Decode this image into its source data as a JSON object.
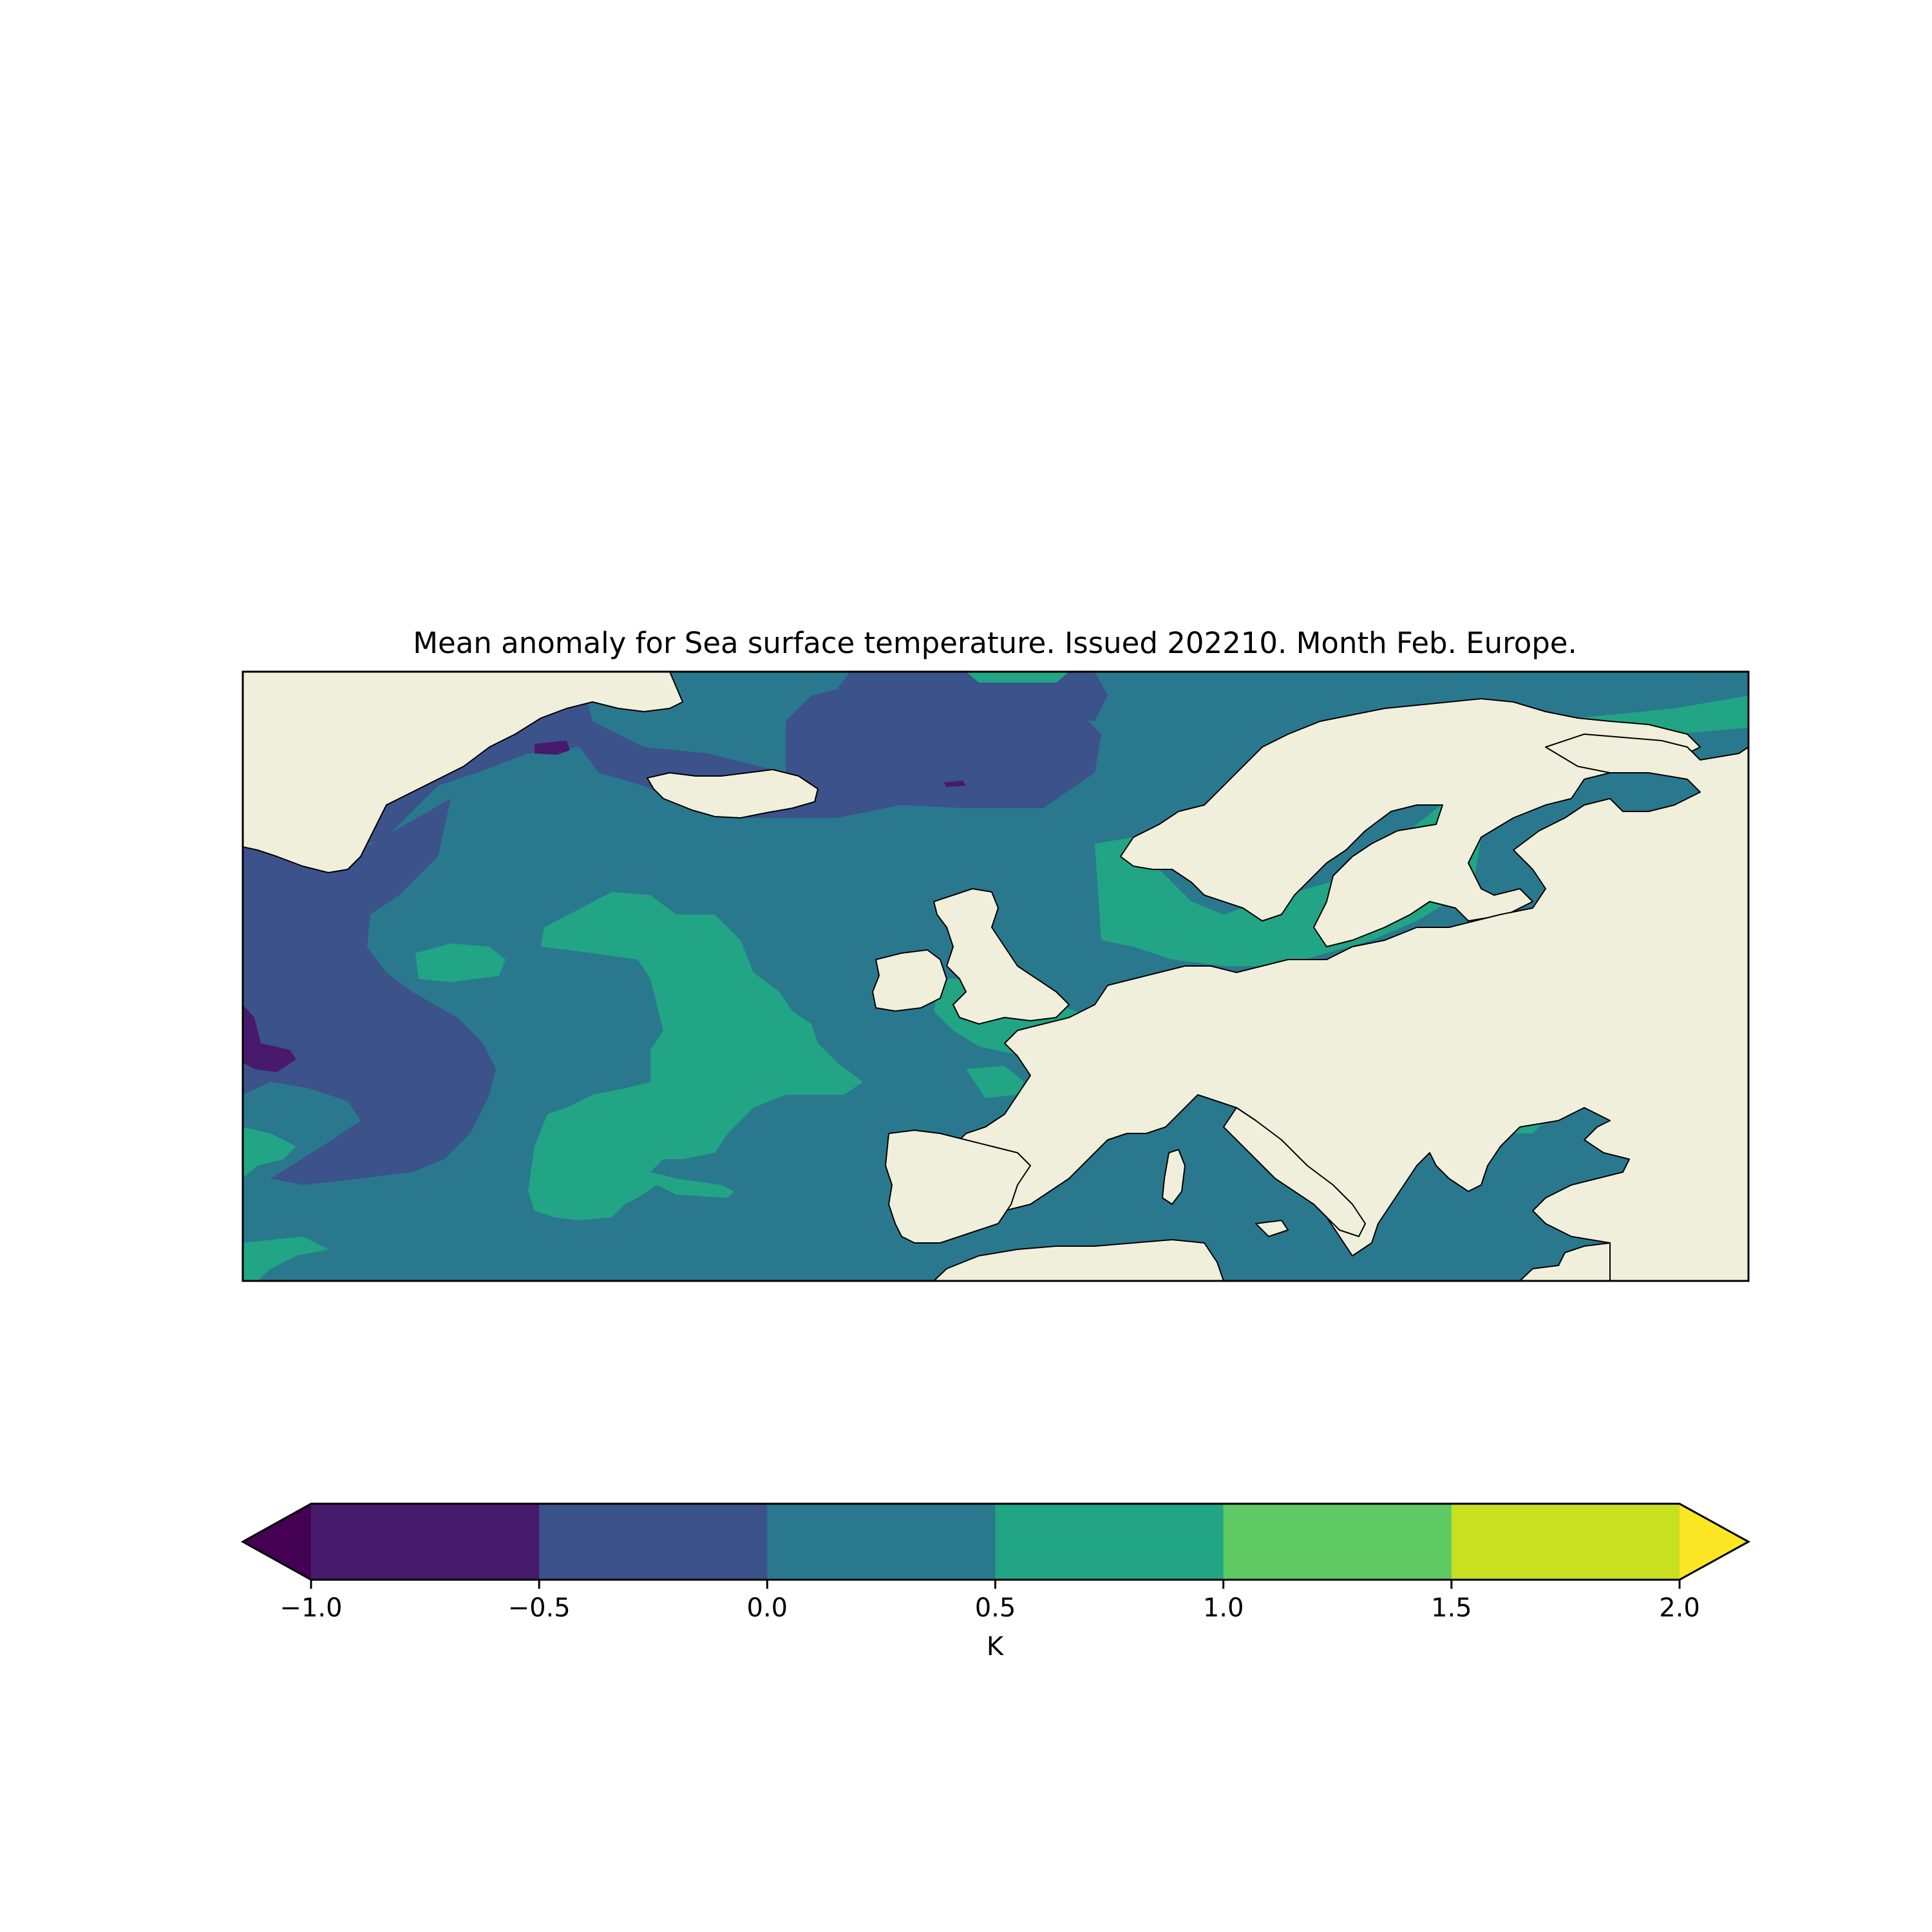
{
  "title": "Mean anomaly for Sea surface temperature. Issued 202210. Month Feb. Europe.",
  "colorbar": {
    "label": "K",
    "ticks": [
      "−1.0",
      "−0.5",
      "0.0",
      "0.5",
      "1.0",
      "1.5",
      "2.0"
    ],
    "levels": [
      -1.0,
      -0.5,
      0.0,
      0.5,
      1.0,
      1.5,
      2.0
    ],
    "bin_colors": [
      "#481a6c",
      "#3b528b",
      "#2a788e",
      "#21a585",
      "#5fc963",
      "#c8e020"
    ],
    "under_color": "#440154",
    "over_color": "#fde725",
    "extend": "both"
  },
  "map": {
    "region": "Europe",
    "land_color": "#efefdb",
    "coastline_color": "#000000"
  }
}
